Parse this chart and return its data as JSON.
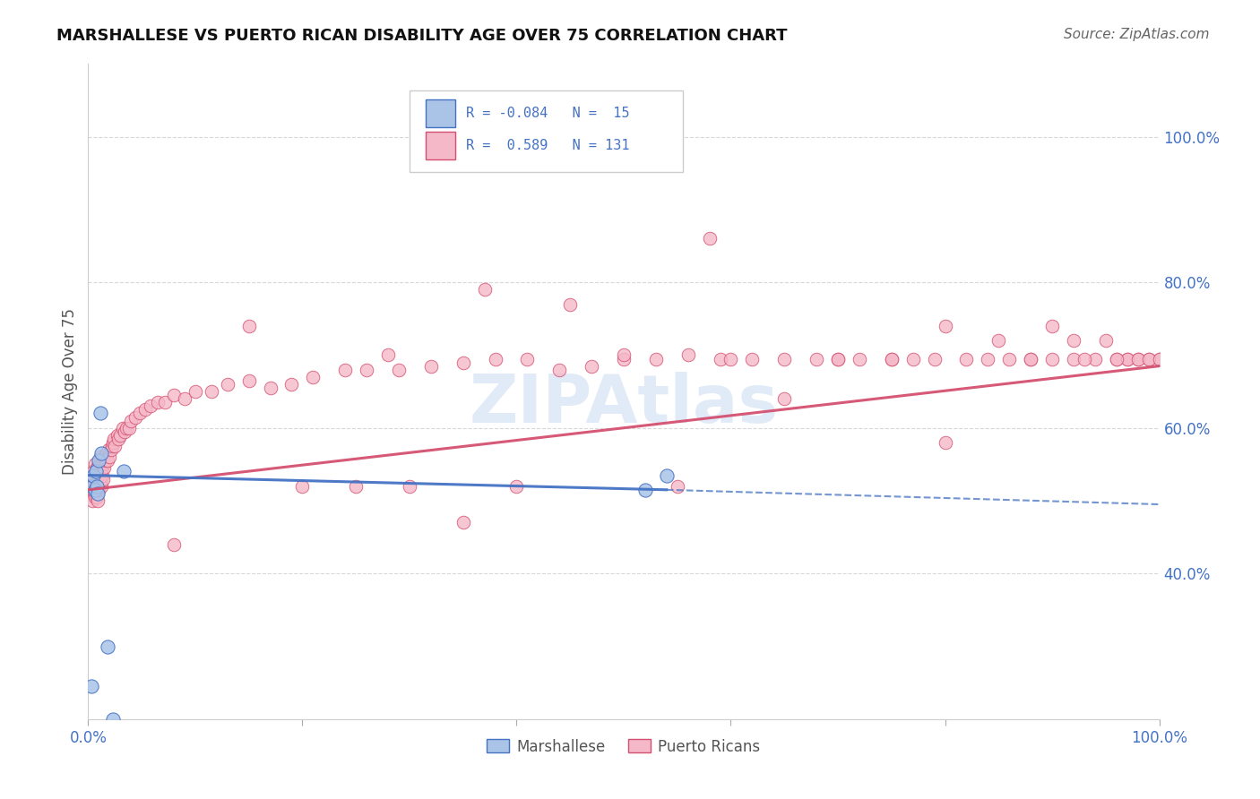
{
  "title": "MARSHALLESE VS PUERTO RICAN DISABILITY AGE OVER 75 CORRELATION CHART",
  "source": "Source: ZipAtlas.com",
  "ylabel": "Disability Age Over 75",
  "watermark": "ZIPAtlas",
  "xlim": [
    0.0,
    1.0
  ],
  "ylim": [
    0.2,
    1.1
  ],
  "y_ticks_right": [
    0.4,
    0.6,
    0.8,
    1.0
  ],
  "y_tick_labels_right": [
    "40.0%",
    "60.0%",
    "80.0%",
    "100.0%"
  ],
  "marshallese_R": -0.084,
  "marshallese_N": 15,
  "puerto_rican_R": 0.589,
  "puerto_rican_N": 131,
  "marshallese_color": "#aac4e8",
  "puerto_rican_color": "#f5b8c8",
  "trend_blue": "#4472c4",
  "trend_pink": "#d45070",
  "legend_blue_face": "#aac4e8",
  "legend_pink_face": "#f5b8c8",
  "marshallese_x": [
    0.003,
    0.004,
    0.005,
    0.006,
    0.007,
    0.008,
    0.009,
    0.01,
    0.011,
    0.012,
    0.018,
    0.023,
    0.033,
    0.52,
    0.54
  ],
  "marshallese_y": [
    0.245,
    0.52,
    0.535,
    0.515,
    0.54,
    0.52,
    0.51,
    0.555,
    0.62,
    0.565,
    0.3,
    0.2,
    0.54,
    0.515,
    0.535
  ],
  "puerto_rican_x": [
    0.003,
    0.004,
    0.004,
    0.005,
    0.005,
    0.005,
    0.006,
    0.006,
    0.006,
    0.006,
    0.007,
    0.007,
    0.007,
    0.008,
    0.008,
    0.008,
    0.008,
    0.009,
    0.009,
    0.009,
    0.009,
    0.01,
    0.01,
    0.01,
    0.011,
    0.011,
    0.011,
    0.012,
    0.012,
    0.013,
    0.013,
    0.014,
    0.014,
    0.015,
    0.015,
    0.016,
    0.017,
    0.018,
    0.019,
    0.02,
    0.021,
    0.022,
    0.023,
    0.024,
    0.025,
    0.027,
    0.028,
    0.03,
    0.032,
    0.034,
    0.036,
    0.038,
    0.04,
    0.044,
    0.048,
    0.053,
    0.058,
    0.065,
    0.072,
    0.08,
    0.09,
    0.1,
    0.115,
    0.13,
    0.15,
    0.17,
    0.19,
    0.21,
    0.24,
    0.26,
    0.29,
    0.32,
    0.35,
    0.38,
    0.41,
    0.44,
    0.47,
    0.5,
    0.53,
    0.56,
    0.59,
    0.62,
    0.65,
    0.68,
    0.7,
    0.72,
    0.75,
    0.77,
    0.79,
    0.82,
    0.84,
    0.86,
    0.88,
    0.9,
    0.92,
    0.94,
    0.96,
    0.97,
    0.98,
    0.99,
    1.0
  ],
  "puerto_rican_y": [
    0.52,
    0.515,
    0.5,
    0.53,
    0.54,
    0.515,
    0.52,
    0.525,
    0.55,
    0.505,
    0.525,
    0.52,
    0.535,
    0.51,
    0.515,
    0.505,
    0.545,
    0.515,
    0.5,
    0.54,
    0.545,
    0.52,
    0.515,
    0.53,
    0.53,
    0.56,
    0.525,
    0.52,
    0.55,
    0.535,
    0.545,
    0.53,
    0.55,
    0.545,
    0.56,
    0.555,
    0.565,
    0.555,
    0.57,
    0.56,
    0.57,
    0.575,
    0.58,
    0.585,
    0.575,
    0.59,
    0.585,
    0.59,
    0.6,
    0.595,
    0.6,
    0.6,
    0.61,
    0.615,
    0.62,
    0.625,
    0.63,
    0.635,
    0.635,
    0.645,
    0.64,
    0.65,
    0.65,
    0.66,
    0.665,
    0.655,
    0.66,
    0.67,
    0.68,
    0.68,
    0.68,
    0.685,
    0.69,
    0.695,
    0.695,
    0.68,
    0.685,
    0.695,
    0.695,
    0.7,
    0.695,
    0.695,
    0.695,
    0.695,
    0.695,
    0.695,
    0.695,
    0.695,
    0.695,
    0.695,
    0.695,
    0.695,
    0.695,
    0.695,
    0.695,
    0.695,
    0.695,
    0.695,
    0.695,
    0.695,
    0.695
  ],
  "trend_blue_x0": 0.0,
  "trend_blue_y0": 0.535,
  "trend_blue_x1": 0.54,
  "trend_blue_y1": 0.515,
  "trend_blue_dash_x0": 0.54,
  "trend_blue_dash_y0": 0.515,
  "trend_blue_dash_x1": 1.0,
  "trend_blue_dash_y1": 0.495,
  "trend_pink_x0": 0.0,
  "trend_pink_y0": 0.515,
  "trend_pink_x1": 1.0,
  "trend_pink_y1": 0.685,
  "extra_pink_high": [
    [
      0.58,
      0.86
    ],
    [
      0.37,
      0.79
    ],
    [
      0.45,
      0.77
    ],
    [
      0.15,
      0.74
    ],
    [
      0.28,
      0.7
    ],
    [
      0.8,
      0.74
    ],
    [
      0.85,
      0.72
    ],
    [
      0.9,
      0.74
    ],
    [
      0.92,
      0.72
    ],
    [
      0.95,
      0.72
    ],
    [
      0.97,
      0.695
    ],
    [
      0.98,
      0.695
    ],
    [
      0.5,
      0.7
    ],
    [
      0.6,
      0.695
    ],
    [
      0.7,
      0.695
    ],
    [
      0.75,
      0.695
    ],
    [
      0.65,
      0.64
    ],
    [
      0.88,
      0.695
    ],
    [
      0.93,
      0.695
    ],
    [
      0.96,
      0.695
    ],
    [
      0.99,
      0.695
    ],
    [
      1.0,
      0.695
    ],
    [
      0.8,
      0.58
    ],
    [
      0.55,
      0.52
    ],
    [
      0.08,
      0.44
    ],
    [
      0.4,
      0.52
    ],
    [
      0.3,
      0.52
    ],
    [
      0.35,
      0.47
    ],
    [
      0.2,
      0.52
    ],
    [
      0.25,
      0.52
    ]
  ]
}
